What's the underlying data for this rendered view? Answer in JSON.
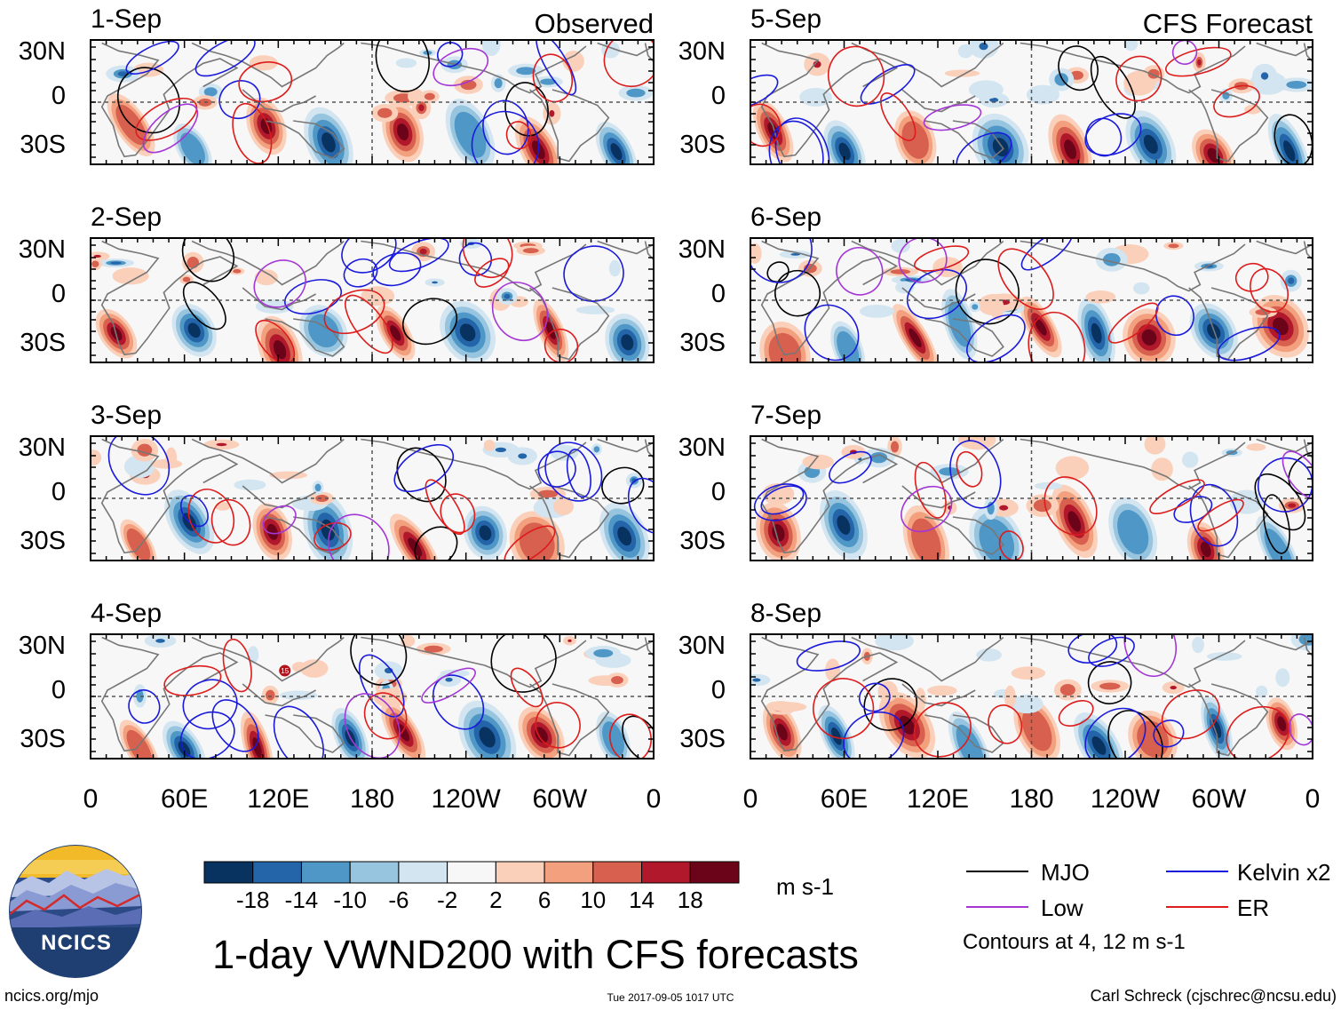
{
  "chart_data": {
    "type": "heatmap",
    "title": "1-day VWND200 with CFS forecasts",
    "variable": "VWND200",
    "units": "m s-1",
    "panel_columns": [
      {
        "label": "Observed",
        "dates": [
          "1-Sep",
          "2-Sep",
          "3-Sep",
          "4-Sep"
        ]
      },
      {
        "label": "CFS Forecast",
        "dates": [
          "5-Sep",
          "6-Sep",
          "7-Sep",
          "8-Sep"
        ]
      }
    ],
    "x_axis": {
      "ticks": [
        "0",
        "60E",
        "120E",
        "180",
        "120W",
        "60W",
        "0"
      ],
      "range_deg_east": [
        0,
        360
      ]
    },
    "y_axis": {
      "ticks": [
        "30N",
        "0",
        "30S"
      ],
      "range_deg": [
        -40,
        40
      ]
    },
    "colorbar": {
      "boundaries": [
        -18,
        -14,
        -10,
        -6,
        -2,
        2,
        6,
        10,
        14,
        18
      ],
      "labels": [
        "-18",
        "-14",
        "-10",
        "-6",
        "-2",
        "2",
        "6",
        "10",
        "14",
        "18"
      ],
      "colors": [
        "#08325f",
        "#2365a8",
        "#4f97c6",
        "#97c4de",
        "#d2e5f0",
        "#f7f7f7",
        "#fbd0bb",
        "#f2a07e",
        "#d8604f",
        "#b1182b",
        "#6b0419"
      ]
    },
    "legend": [
      {
        "name": "MJO",
        "color": "#000000"
      },
      {
        "name": "Kelvin x2",
        "color": "#1a1adc"
      },
      {
        "name": "Low",
        "color": "#a436d6"
      },
      {
        "name": "ER",
        "color": "#dd1c1c"
      }
    ],
    "contour_note": "Contours at 4, 12 m s-1"
  },
  "footer": {
    "logo_text": "NCICS",
    "url": "ncics.org/mjo",
    "timestamp": "Tue 2017-09-05 1017 UTC",
    "credit": "Carl Schreck (cjschrec@ncsu.edu)"
  },
  "map_features": {
    "storm_marker_label": "15"
  }
}
